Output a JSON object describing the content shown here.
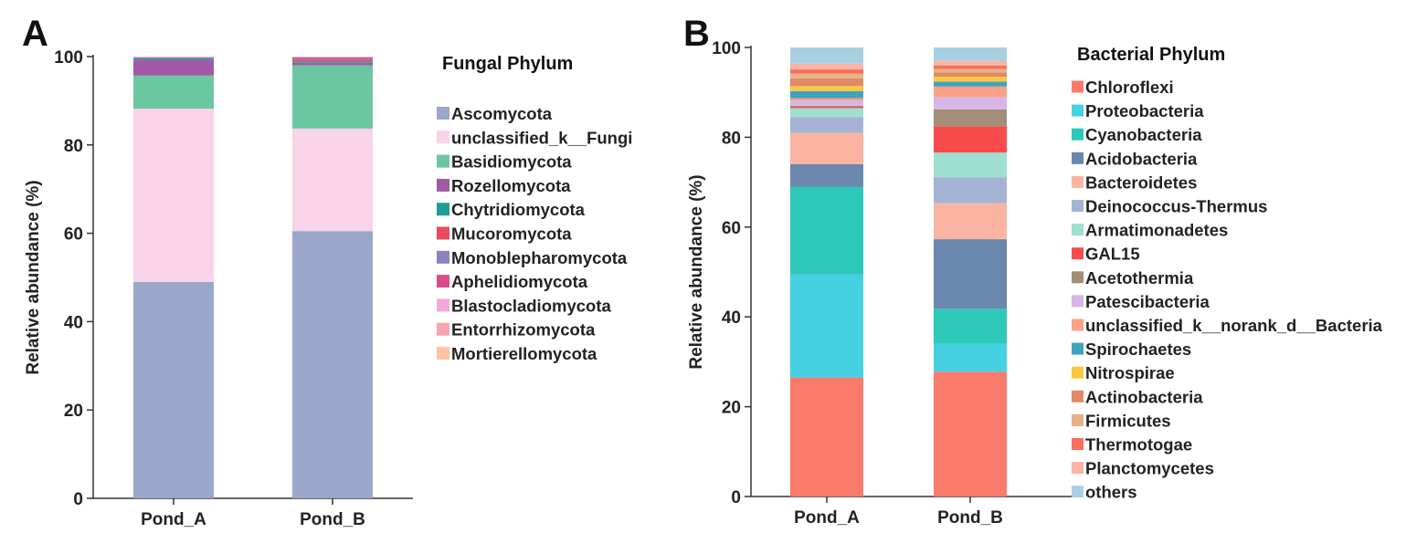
{
  "chart_data": [
    {
      "panel_label": "A",
      "type": "bar",
      "stacked": true,
      "ylabel": "Relative abundance (%)",
      "xlabel": "",
      "ylim": [
        0,
        100
      ],
      "yticks": [
        0,
        20,
        40,
        60,
        80,
        100
      ],
      "categories": [
        "Pond_A",
        "Pond_B"
      ],
      "legend_title": "Fungal Phylum",
      "legend_position": "right",
      "grid": false,
      "series": [
        {
          "name": "Ascomycota",
          "color": "#9BA6CB",
          "values": [
            49.0,
            60.5
          ]
        },
        {
          "name": "unclassified_k__Fungi",
          "color": "#F9D3E8",
          "values": [
            39.2,
            23.2
          ]
        },
        {
          "name": "Basidiomycota",
          "color": "#6BC7A1",
          "values": [
            7.5,
            14.3
          ]
        },
        {
          "name": "Rozellomycota",
          "color": "#A05AA4",
          "values": [
            3.6,
            0.6
          ]
        },
        {
          "name": "Chytridiomycota",
          "color": "#1F9E99",
          "values": [
            0.3,
            0.3
          ]
        },
        {
          "name": "Mucoromycota",
          "color": "#E94A5D",
          "values": [
            0.1,
            0.4
          ]
        },
        {
          "name": "Monoblepharomycota",
          "color": "#8E80BA",
          "values": [
            0.1,
            0.2
          ]
        },
        {
          "name": "Aphelidiomycota",
          "color": "#DE4B8C",
          "values": [
            0.05,
            0.3
          ]
        },
        {
          "name": "Blastocladiomycota",
          "color": "#F0A9DA",
          "values": [
            0.05,
            0.1
          ]
        },
        {
          "name": "Entorrhizomycota",
          "color": "#F7A5B4",
          "values": [
            0.05,
            0.05
          ]
        },
        {
          "name": "Mortierellomycota",
          "color": "#FDC3A7",
          "values": [
            0.05,
            0.05
          ]
        }
      ]
    },
    {
      "panel_label": "B",
      "type": "bar",
      "stacked": true,
      "ylabel": "Relative abundance (%)",
      "xlabel": "",
      "ylim": [
        0,
        100
      ],
      "yticks": [
        0,
        20,
        40,
        60,
        80,
        100
      ],
      "categories": [
        "Pond_A",
        "Pond_B"
      ],
      "legend_title": "Bacterial Phylum",
      "legend_position": "right",
      "grid": false,
      "series": [
        {
          "name": "Chloroflexi",
          "color": "#FA7B6B",
          "values": [
            26.5,
            27.8
          ]
        },
        {
          "name": "Proteobacteria",
          "color": "#45D1E2",
          "values": [
            23.0,
            6.2
          ]
        },
        {
          "name": "Cyanobacteria",
          "color": "#2EC8B8",
          "values": [
            19.5,
            7.8
          ]
        },
        {
          "name": "Acidobacteria",
          "color": "#6B87AE",
          "values": [
            5.0,
            15.5
          ]
        },
        {
          "name": "Bacteroidetes",
          "color": "#FBB4A2",
          "values": [
            7.0,
            8.0
          ]
        },
        {
          "name": "Deinococcus-Thermus",
          "color": "#A5B4D4",
          "values": [
            3.5,
            5.8
          ]
        },
        {
          "name": "Armatimonadetes",
          "color": "#9EDFD1",
          "values": [
            2.0,
            5.5
          ]
        },
        {
          "name": "GAL15",
          "color": "#F84B4B",
          "values": [
            0.3,
            5.8
          ]
        },
        {
          "name": "Acetothermia",
          "color": "#A48D79",
          "values": [
            0.2,
            3.8
          ]
        },
        {
          "name": "Patescibacteria",
          "color": "#D5B6E6",
          "values": [
            1.2,
            2.7
          ]
        },
        {
          "name": "unclassified_k__norank_d__Bacteria",
          "color": "#FCA188",
          "values": [
            0.5,
            2.4
          ]
        },
        {
          "name": "Spirochaetes",
          "color": "#3FA3BE",
          "values": [
            1.6,
            1.1
          ]
        },
        {
          "name": "Nitrospirae",
          "color": "#FDC83E",
          "values": [
            1.1,
            1.1
          ]
        },
        {
          "name": "Actinobacteria",
          "color": "#E08A66",
          "values": [
            1.7,
            0.9
          ]
        },
        {
          "name": "Firmicutes",
          "color": "#E7B386",
          "values": [
            1.1,
            0.8
          ]
        },
        {
          "name": "Thermotogae",
          "color": "#F7705E",
          "values": [
            0.9,
            0.8
          ]
        },
        {
          "name": "Planctomycetes",
          "color": "#FCB3A4",
          "values": [
            1.3,
            1.0
          ]
        },
        {
          "name": "others",
          "color": "#A7D0E3",
          "values": [
            3.6,
            3.0
          ]
        }
      ]
    }
  ]
}
